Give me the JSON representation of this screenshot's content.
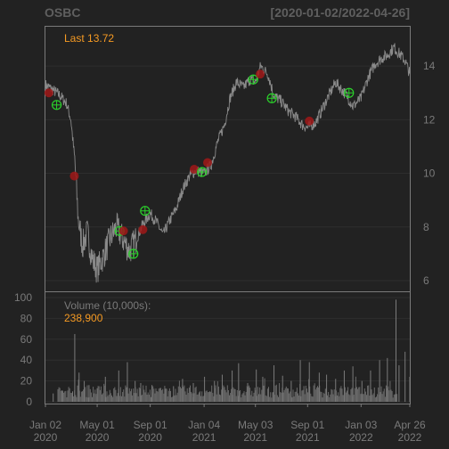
{
  "header": {
    "symbol": "OSBC",
    "range": "[2020-01-02/2022-04-26]"
  },
  "price_panel": {
    "last_label": "Last 13.72",
    "last_color": "#f59a23"
  },
  "volume_panel": {
    "label": "Volume (10,000s):",
    "last_value": "238,900",
    "value_color": "#f59a23"
  },
  "colors": {
    "background": "#222222",
    "panel_border": "#7a7a7a",
    "line": "#8a8a8a",
    "grid": "#2e2e2e",
    "buy": "#2bd12b",
    "sell": "#a01818"
  },
  "chart_data": [
    {
      "type": "line",
      "name": "price",
      "x_range": [
        "2020-01-02",
        "2022-04-26"
      ],
      "ylim": [
        5.6,
        15.5
      ],
      "y_ticks": [
        6,
        8,
        10,
        12,
        14
      ],
      "x_ticks": [
        {
          "date": "2020-01-02",
          "label1": "Jan 02",
          "label2": "2020"
        },
        {
          "date": "2020-05-01",
          "label1": "May 01",
          "label2": "2020"
        },
        {
          "date": "2020-09-01",
          "label1": "Sep 01",
          "label2": "2020"
        },
        {
          "date": "2021-01-04",
          "label1": "Jan 04",
          "label2": "2021"
        },
        {
          "date": "2021-05-03",
          "label1": "May 03",
          "label2": "2021"
        },
        {
          "date": "2021-09-01",
          "label1": "Sep 01",
          "label2": "2021"
        },
        {
          "date": "2022-01-03",
          "label1": "Jan 03",
          "label2": "2022"
        },
        {
          "date": "2022-04-26",
          "label1": "Apr 26",
          "label2": "2022"
        }
      ],
      "points": [
        [
          "2020-01-02",
          13.3
        ],
        [
          "2020-01-20",
          13.1
        ],
        [
          "2020-02-05",
          12.9
        ],
        [
          "2020-02-20",
          12.6
        ],
        [
          "2020-03-01",
          12.0
        ],
        [
          "2020-03-10",
          10.5
        ],
        [
          "2020-03-18",
          8.3
        ],
        [
          "2020-03-28",
          7.3
        ],
        [
          "2020-04-08",
          7.8
        ],
        [
          "2020-04-20",
          6.8
        ],
        [
          "2020-05-01",
          6.4
        ],
        [
          "2020-05-15",
          6.9
        ],
        [
          "2020-06-01",
          7.6
        ],
        [
          "2020-06-15",
          8.0
        ],
        [
          "2020-07-01",
          7.5
        ],
        [
          "2020-07-15",
          7.1
        ],
        [
          "2020-08-01",
          7.6
        ],
        [
          "2020-08-15",
          8.1
        ],
        [
          "2020-09-01",
          8.5
        ],
        [
          "2020-09-15",
          8.2
        ],
        [
          "2020-10-01",
          7.7
        ],
        [
          "2020-10-15",
          8.2
        ],
        [
          "2020-11-01",
          8.7
        ],
        [
          "2020-11-15",
          9.4
        ],
        [
          "2020-12-01",
          9.9
        ],
        [
          "2020-12-15",
          10.1
        ],
        [
          "2021-01-04",
          10.0
        ],
        [
          "2021-01-20",
          10.3
        ],
        [
          "2021-02-05",
          11.2
        ],
        [
          "2021-02-20",
          11.8
        ],
        [
          "2021-03-05",
          12.8
        ],
        [
          "2021-03-20",
          13.4
        ],
        [
          "2021-04-05",
          13.2
        ],
        [
          "2021-04-20",
          13.5
        ],
        [
          "2021-05-03",
          13.4
        ],
        [
          "2021-05-15",
          14.0
        ],
        [
          "2021-06-01",
          13.7
        ],
        [
          "2021-06-15",
          12.9
        ],
        [
          "2021-07-01",
          12.7
        ],
        [
          "2021-07-20",
          12.3
        ],
        [
          "2021-08-05",
          12.1
        ],
        [
          "2021-08-20",
          11.8
        ],
        [
          "2021-09-01",
          11.7
        ],
        [
          "2021-09-20",
          11.9
        ],
        [
          "2021-10-05",
          12.4
        ],
        [
          "2021-10-20",
          12.9
        ],
        [
          "2021-11-05",
          13.4
        ],
        [
          "2021-11-20",
          13.1
        ],
        [
          "2021-12-01",
          12.9
        ],
        [
          "2021-12-15",
          12.5
        ],
        [
          "2022-01-03",
          12.8
        ],
        [
          "2022-01-20",
          13.6
        ],
        [
          "2022-02-05",
          14.1
        ],
        [
          "2022-02-20",
          14.3
        ],
        [
          "2022-03-05",
          14.4
        ],
        [
          "2022-03-20",
          14.7
        ],
        [
          "2022-04-05",
          14.4
        ],
        [
          "2022-04-15",
          14.2
        ],
        [
          "2022-04-26",
          13.72
        ]
      ],
      "markers": [
        {
          "date": "2020-01-10",
          "value": 13.0,
          "kind": "sell"
        },
        {
          "date": "2020-01-28",
          "value": 12.55,
          "kind": "buy"
        },
        {
          "date": "2020-03-09",
          "value": 9.9,
          "kind": "sell"
        },
        {
          "date": "2020-06-22",
          "value": 7.85,
          "kind": "buy"
        },
        {
          "date": "2020-07-01",
          "value": 7.85,
          "kind": "sell"
        },
        {
          "date": "2020-07-24",
          "value": 7.0,
          "kind": "buy"
        },
        {
          "date": "2020-08-15",
          "value": 7.9,
          "kind": "sell"
        },
        {
          "date": "2020-08-20",
          "value": 8.6,
          "kind": "buy"
        },
        {
          "date": "2020-12-12",
          "value": 10.15,
          "kind": "sell"
        },
        {
          "date": "2020-12-30",
          "value": 10.05,
          "kind": "buy"
        },
        {
          "date": "2021-01-12",
          "value": 10.4,
          "kind": "sell"
        },
        {
          "date": "2021-04-28",
          "value": 13.5,
          "kind": "buy"
        },
        {
          "date": "2021-05-14",
          "value": 13.7,
          "kind": "sell"
        },
        {
          "date": "2021-06-10",
          "value": 12.8,
          "kind": "buy"
        },
        {
          "date": "2021-09-05",
          "value": 11.95,
          "kind": "sell"
        },
        {
          "date": "2021-12-06",
          "value": 13.0,
          "kind": "buy"
        }
      ]
    },
    {
      "type": "bar",
      "name": "volume",
      "ylim": [
        0,
        100
      ],
      "y_ticks": [
        0,
        20,
        40,
        60,
        80,
        100
      ],
      "spikes": [
        [
          "2020-01-20",
          8
        ],
        [
          "2020-02-10",
          11
        ],
        [
          "2020-03-05",
          10
        ],
        [
          "2020-03-10",
          65
        ],
        [
          "2020-03-20",
          28
        ],
        [
          "2020-04-01",
          20
        ],
        [
          "2020-04-12",
          16
        ],
        [
          "2020-05-01",
          13
        ],
        [
          "2020-05-20",
          24
        ],
        [
          "2020-06-20",
          30
        ],
        [
          "2020-07-10",
          38
        ],
        [
          "2020-07-28",
          20
        ],
        [
          "2020-08-10",
          18
        ],
        [
          "2020-09-05",
          16
        ],
        [
          "2020-10-05",
          12
        ],
        [
          "2020-10-25",
          15
        ],
        [
          "2020-11-15",
          22
        ],
        [
          "2020-12-10",
          18
        ],
        [
          "2021-01-05",
          24
        ],
        [
          "2021-01-28",
          20
        ],
        [
          "2021-02-15",
          26
        ],
        [
          "2021-03-10",
          30
        ],
        [
          "2021-03-25",
          37
        ],
        [
          "2021-04-15",
          18
        ],
        [
          "2021-05-05",
          31
        ],
        [
          "2021-05-20",
          24
        ],
        [
          "2021-06-15",
          35
        ],
        [
          "2021-07-05",
          25
        ],
        [
          "2021-07-25",
          20
        ],
        [
          "2021-08-15",
          40
        ],
        [
          "2021-09-05",
          38
        ],
        [
          "2021-09-28",
          28
        ],
        [
          "2021-10-15",
          26
        ],
        [
          "2021-11-05",
          22
        ],
        [
          "2021-11-25",
          30
        ],
        [
          "2021-12-15",
          34
        ],
        [
          "2022-01-05",
          20
        ],
        [
          "2022-01-25",
          30
        ],
        [
          "2022-02-15",
          40
        ],
        [
          "2022-03-05",
          42
        ],
        [
          "2022-03-25",
          98
        ],
        [
          "2022-04-01",
          35
        ],
        [
          "2022-04-15",
          48
        ],
        [
          "2022-04-26",
          23.89
        ]
      ]
    }
  ]
}
